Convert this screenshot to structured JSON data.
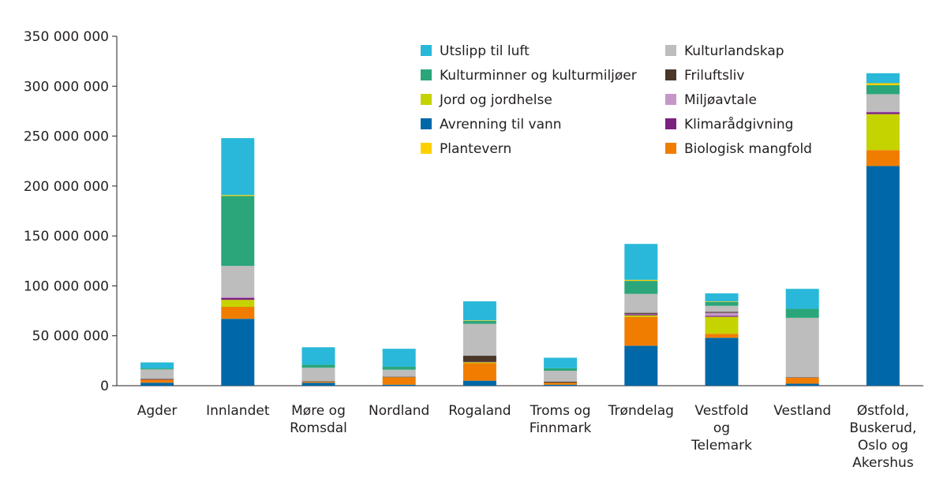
{
  "chart_data": {
    "type": "stacked_bar",
    "categories": [
      "Agder",
      "Innlandet",
      "Møre og\nRomsdal",
      "Nordland",
      "Rogaland",
      "Troms og\nFinnmark",
      "Trøndelag",
      "Vestfold\nog\nTelemark",
      "Vestland",
      "Østfold,\nBuskerud,\nOslo og\nAkershus"
    ],
    "series": [
      {
        "name": "Avrenning til vann",
        "color": "#0068a8",
        "values": [
          3,
          67,
          3,
          1,
          5,
          1,
          40,
          48,
          2,
          220
        ]
      },
      {
        "name": "Biologisk mangfold",
        "color": "#f07d00",
        "values": [
          3,
          12,
          1,
          7.5,
          17.5,
          2,
          29,
          4,
          6,
          16
        ]
      },
      {
        "name": "Jord og jordhelse",
        "color": "#c5d300",
        "values": [
          0,
          7,
          0,
          0,
          1,
          0,
          1.5,
          17,
          0,
          36
        ]
      },
      {
        "name": "Klimarådgivning",
        "color": "#7b2280",
        "values": [
          0.3,
          2,
          0,
          0,
          0.5,
          0,
          1,
          1,
          0,
          2
        ]
      },
      {
        "name": "Miljøavtale",
        "color": "#c597c9",
        "values": [
          0,
          1,
          0,
          0,
          0,
          0,
          0.5,
          3,
          0,
          0.5
        ]
      },
      {
        "name": "Friluftsliv",
        "color": "#4a3728",
        "values": [
          0.5,
          0,
          0.5,
          0.5,
          6,
          1,
          1,
          1,
          0.5,
          0
        ]
      },
      {
        "name": "Kulturlandskap",
        "color": "#bdbdbd",
        "values": [
          9.5,
          31,
          13.5,
          7,
          32,
          11,
          19,
          6,
          59.5,
          17.5
        ]
      },
      {
        "name": "Kulturminner og kulturmiljøer",
        "color": "#2aa67a",
        "values": [
          1,
          70,
          3,
          3,
          3,
          2.5,
          13,
          4,
          9,
          9
        ]
      },
      {
        "name": "Plantevern",
        "color": "#ffd000",
        "values": [
          0,
          1,
          0,
          0,
          0.5,
          0,
          1,
          0.5,
          0,
          2
        ]
      },
      {
        "name": "Utslipp til luft",
        "color": "#29b8d9",
        "values": [
          6,
          57,
          17.5,
          18,
          19,
          10.5,
          36,
          8,
          20,
          10
        ]
      }
    ],
    "ylim": [
      0,
      350000000
    ],
    "yticks": [
      0,
      {
        "value": 50000000,
        "label": "50 000 000"
      },
      {
        "value": 100000000,
        "label": "100 000 000"
      },
      {
        "value": 150000000,
        "label": "150 000 000"
      },
      {
        "value": 200000000,
        "label": "200 000 000"
      },
      {
        "value": 250000000,
        "label": "250 000 000"
      },
      {
        "value": 300000000,
        "label": "300 000 000"
      },
      {
        "value": 350000000,
        "label": "350 000 000"
      }
    ],
    "value_unit": 1000000
  }
}
